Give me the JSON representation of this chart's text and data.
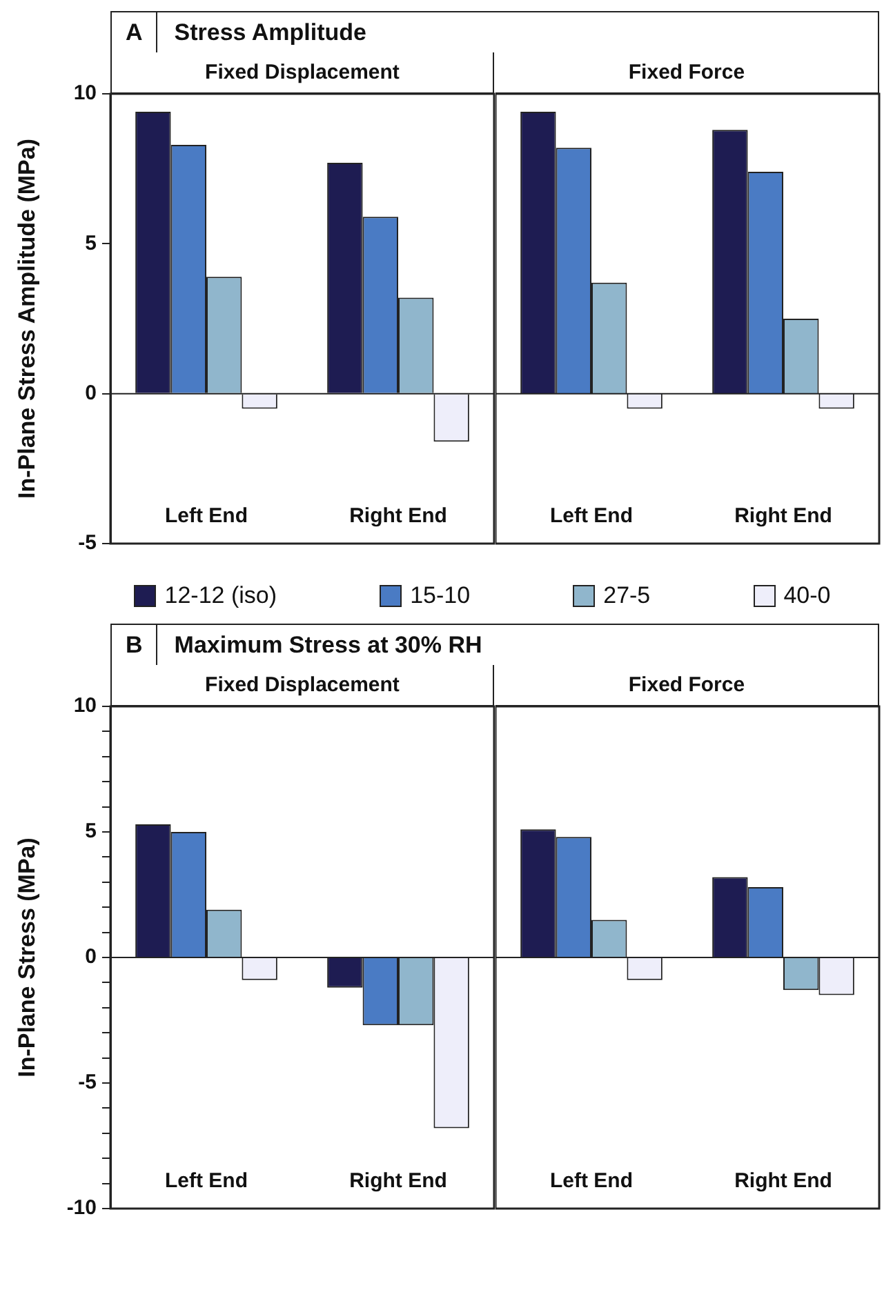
{
  "chart_data": [
    {
      "type": "bar",
      "title": "Stress Amplitude",
      "subtitle": "Fixed Displacement",
      "annotations": [
        "A"
      ],
      "ylabel": "In-Plane Stress Amplitude (MPa)",
      "categories": [
        "Left End",
        "Right End"
      ],
      "series": [
        {
          "name": "12-12 (iso)",
          "color": "#1e1c52",
          "values": [
            9.4,
            7.7
          ]
        },
        {
          "name": "15-10",
          "color": "#4a7bc4",
          "values": [
            8.3,
            5.9
          ]
        },
        {
          "name": "27-5",
          "color": "#90b6cc",
          "values": [
            3.9,
            3.2
          ]
        },
        {
          "name": "40-0",
          "color": "#eeeefa",
          "values": [
            -0.5,
            -1.6
          ]
        }
      ],
      "ylim": [
        -5,
        10
      ],
      "yticks": [
        -5,
        0,
        5,
        10
      ],
      "legend": "bottom",
      "ref_lines": [
        {
          "axis": "y",
          "value": 0
        }
      ]
    },
    {
      "type": "bar",
      "subtitle": "Fixed Force",
      "categories": [
        "Left End",
        "Right End"
      ],
      "series": [
        {
          "color": "#1e1c52",
          "values": [
            9.4,
            8.8
          ]
        },
        {
          "color": "#4a7bc4",
          "values": [
            8.2,
            7.4
          ]
        },
        {
          "color": "#90b6cc",
          "values": [
            3.7,
            2.5
          ]
        },
        {
          "color": "#eeeefa",
          "values": [
            -0.5,
            -0.5
          ]
        }
      ],
      "ylim": [
        -5,
        10
      ],
      "tick_labels": "x",
      "ref_lines": [
        {
          "axis": "y",
          "value": 0
        }
      ]
    },
    {
      "type": "bar",
      "title": "Maximum Stress at 30% RH",
      "subtitle": "Fixed Displacement",
      "annotations": [
        "B"
      ],
      "ylabel": "In-Plane Stress (MPa)",
      "categories": [
        "Left End",
        "Right End"
      ],
      "series": [
        {
          "color": "#1e1c52",
          "values": [
            5.3,
            -1.2
          ]
        },
        {
          "color": "#4a7bc4",
          "values": [
            5.0,
            -2.7
          ]
        },
        {
          "color": "#90b6cc",
          "values": [
            1.9,
            -2.7
          ]
        },
        {
          "color": "#eeeefa",
          "values": [
            -0.9,
            -6.8
          ]
        }
      ],
      "ylim": [
        -10,
        10
      ],
      "yticks": [
        -10,
        {
          "value": -9,
          "label": null
        },
        {
          "value": -8,
          "label": null
        },
        {
          "value": -7,
          "label": null
        },
        {
          "value": -6,
          "label": null
        },
        -5,
        {
          "value": -4,
          "label": null
        },
        {
          "value": -3,
          "label": null
        },
        {
          "value": -2,
          "label": null
        },
        {
          "value": -1,
          "label": null
        },
        0,
        {
          "value": 1,
          "label": null
        },
        {
          "value": 2,
          "label": null
        },
        {
          "value": 3,
          "label": null
        },
        {
          "value": 4,
          "label": null
        },
        5,
        {
          "value": 6,
          "label": null
        },
        {
          "value": 7,
          "label": null
        },
        {
          "value": 8,
          "label": null
        },
        {
          "value": 9,
          "label": null
        },
        10
      ],
      "ref_lines": [
        {
          "axis": "y",
          "value": 0
        }
      ]
    },
    {
      "type": "bar",
      "subtitle": "Fixed Force",
      "categories": [
        "Left End",
        "Right End"
      ],
      "series": [
        {
          "color": "#1e1c52",
          "values": [
            5.1,
            3.2
          ]
        },
        {
          "color": "#4a7bc4",
          "values": [
            4.8,
            2.8
          ]
        },
        {
          "color": "#90b6cc",
          "values": [
            1.5,
            -1.3
          ]
        },
        {
          "color": "#eeeefa",
          "values": [
            -0.9,
            -1.5
          ]
        }
      ],
      "ylim": [
        -10,
        10
      ],
      "tick_labels": "x",
      "ref_lines": [
        {
          "axis": "y",
          "value": 0
        }
      ]
    }
  ]
}
